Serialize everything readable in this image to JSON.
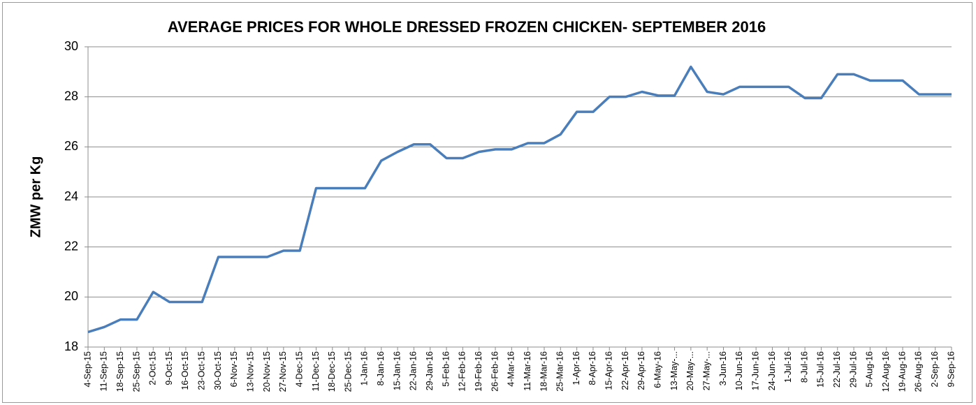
{
  "chart_data": {
    "type": "line",
    "title": "AVERAGE PRICES FOR WHOLE DRESSED FROZEN CHICKEN- SEPTEMBER 2016",
    "y_label": "ZMW per Kg",
    "categories": [
      "4-Sep-15",
      "11-Sep-15",
      "18-Sep-15",
      "25-Sep-15",
      "2-Oct-15",
      "9-Oct-15",
      "16-Oct-15",
      "23-Oct-15",
      "30-Oct-15",
      "6-Nov-15",
      "13-Nov-15",
      "20-Nov-15",
      "27-Nov-15",
      "4-Dec-15",
      "11-Dec-15",
      "18-Dec-15",
      "25-Dec-15",
      "1-Jan-16",
      "8-Jan-16",
      "15-Jan-16",
      "22-Jan-16",
      "29-Jan-16",
      "5-Feb-16",
      "12-Feb-16",
      "19-Feb-16",
      "26-Feb-16",
      "4-Mar-16",
      "11-Mar-16",
      "18-Mar-16",
      "25-Mar-16",
      "1-Apr-16",
      "8-Apr-16",
      "15-Apr-16",
      "22-Apr-16",
      "29-Apr-16",
      "6-May-16",
      "13-May-...",
      "20-May-...",
      "27-May-...",
      "3-Jun-16",
      "10-Jun-16",
      "17-Jun-16",
      "24-Jun-16",
      "1-Jul-16",
      "8-Jul-16",
      "15-Jul-16",
      "22-Jul-16",
      "29-Jul-16",
      "5-Aug-16",
      "12-Aug-16",
      "19-Aug-16",
      "26-Aug-16",
      "2-Sep-16",
      "9-Sep-16"
    ],
    "values": [
      18.6,
      18.8,
      19.1,
      19.1,
      20.2,
      19.8,
      19.8,
      19.8,
      21.6,
      21.6,
      21.6,
      21.6,
      21.85,
      21.85,
      24.35,
      24.35,
      24.35,
      24.35,
      25.45,
      25.8,
      26.1,
      26.1,
      25.55,
      25.55,
      25.8,
      25.9,
      25.9,
      26.15,
      26.15,
      26.5,
      27.4,
      27.4,
      28.0,
      28.0,
      28.2,
      28.05,
      28.05,
      29.2,
      28.2,
      28.1,
      28.4,
      28.4,
      28.4,
      28.4,
      27.95,
      27.95,
      28.9,
      28.9,
      28.65,
      28.65,
      28.65,
      28.1,
      28.1,
      28.1
    ],
    "color": "#4a7ebb",
    "ylim": [
      18,
      30
    ],
    "yticks": [
      18,
      20,
      22,
      24,
      26,
      28,
      30
    ],
    "grid": true
  }
}
